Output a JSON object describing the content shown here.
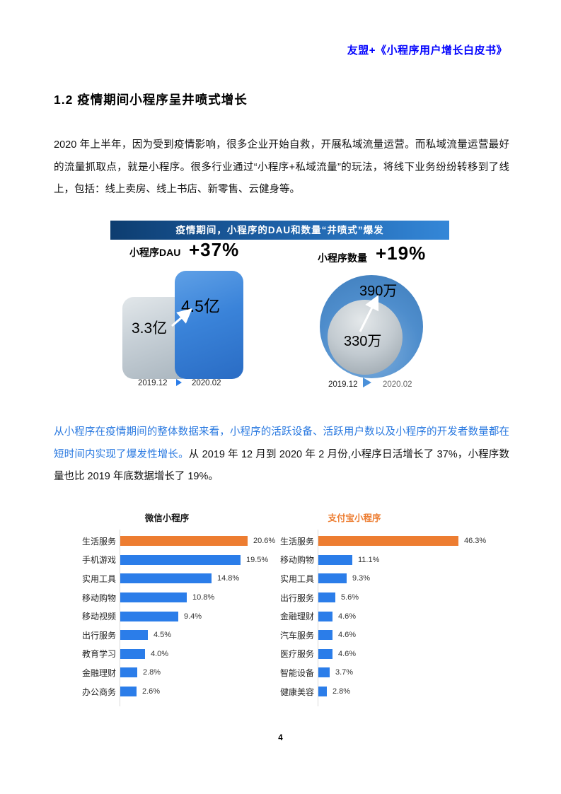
{
  "doc": {
    "header": "友盟+《小程序用户增长白皮书》",
    "section_title": "1.2 疫情期间小程序呈井喷式增长",
    "paragraph1": "2020 年上半年，因为受到疫情影响，很多企业开始自救，开展私域流量运营。而私域流量运营最好的流量抓取点，就是小程序。很多行业通过“小程序+私域流量”的玩法，将线下业务纷纷转移到了线上，包括：线上卖房、线上书店、新零售、云健身等。",
    "paragraph2_highlight": "从小程序在疫情期间的整体数据来看，小程序的活跃设备、活跃用户数以及小程序的开发者数量都在短时间内实现了爆发性增长。",
    "paragraph2_rest": "从 2019 年 12 月到 2020 年 2 月份,小程序日活增长了 37%，小程序数量也比 2019 年底数据增长了 19%。",
    "page_number": "4"
  },
  "infographic": {
    "banner_title": "疫情期间，小程序的DAU和数量“井喷式”爆发",
    "dau": {
      "label": "小程序DAU",
      "growth": "+37%",
      "value_before": "3.3亿",
      "value_after": "4.5亿",
      "date_before": "2019.12",
      "date_after": "2020.02"
    },
    "count": {
      "label": "小程序数量",
      "growth": "+19%",
      "value_before": "330万",
      "value_after": "390万",
      "date_before": "2019.12",
      "date_after": "2020.02"
    },
    "colors": {
      "banner_start": "#0d3d70",
      "banner_end": "#3487d8",
      "bar_before_gray": "#c6cfd6",
      "bar_after_blue": "#3a83d9",
      "circle_outer_blue": "#4e8dcc",
      "circle_inner_gray": "#c2cad0"
    }
  },
  "chart_data": [
    {
      "type": "bar",
      "orientation": "horizontal",
      "title": "微信小程序",
      "categories": [
        "生活服务",
        "手机游戏",
        "实用工具",
        "移动购物",
        "移动视频",
        "出行服务",
        "教育学习",
        "金融理财",
        "办公商务"
      ],
      "values": [
        20.6,
        19.5,
        14.8,
        10.8,
        9.4,
        4.5,
        4.0,
        2.8,
        2.6
      ],
      "labels": [
        "20.6%",
        "19.5%",
        "14.8%",
        "10.8%",
        "9.4%",
        "4.5%",
        "4.0%",
        "2.8%",
        "2.6%"
      ],
      "bar_color": "#2B7DE9",
      "highlight_color": "#ED7D31",
      "highlight_index": 0,
      "xlim": [
        0,
        22
      ],
      "grid": false,
      "value_labels_shown": true
    },
    {
      "type": "bar",
      "orientation": "horizontal",
      "title": "支付宝小程序",
      "title_color": "#ED7D31",
      "categories": [
        "生活服务",
        "移动购物",
        "实用工具",
        "出行服务",
        "金融理财",
        "汽车服务",
        "医疗服务",
        "智能设备",
        "健康美容"
      ],
      "values": [
        46.3,
        11.1,
        9.3,
        5.6,
        4.6,
        4.6,
        4.6,
        3.7,
        2.8
      ],
      "labels": [
        "46.3%",
        "11.1%",
        "9.3%",
        "5.6%",
        "4.6%",
        "4.6%",
        "4.6%",
        "3.7%",
        "2.8%"
      ],
      "bar_color": "#2B7DE9",
      "highlight_color": "#ED7D31",
      "highlight_index": 0,
      "xlim": [
        0,
        50
      ],
      "grid": false,
      "value_labels_shown": true
    }
  ]
}
